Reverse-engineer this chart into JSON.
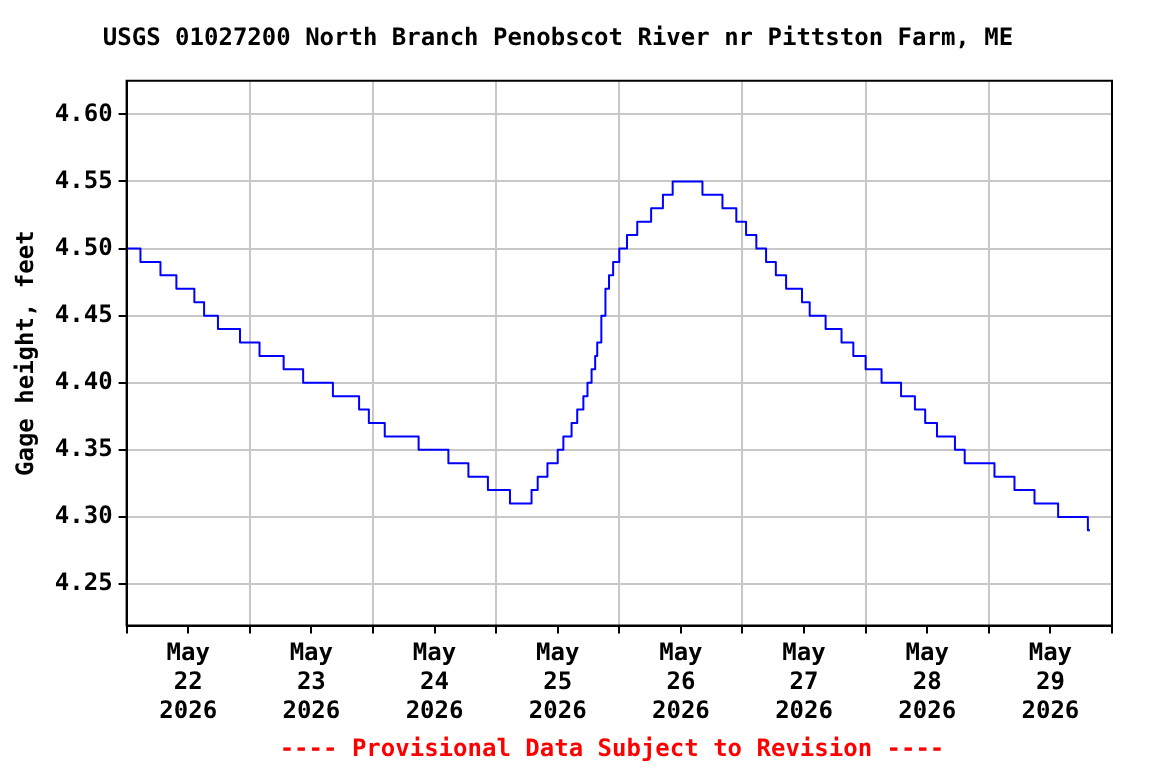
{
  "chart_data": {
    "type": "step",
    "title": "USGS 01027200 North Branch Penobscot River nr Pittston Farm, ME",
    "ylabel": "Gage height, feet",
    "annotations": [
      "---- Provisional Data Subject to Revision ----"
    ],
    "x": [
      "2026-05-22T00:00",
      "2026-05-22T02:42",
      "2026-05-22T06:36",
      "2026-05-22T09:42",
      "2026-05-22T13:12",
      "2026-05-22T15:06",
      "2026-05-22T17:48",
      "2026-05-22T22:06",
      "2026-05-23T01:54",
      "2026-05-23T06:36",
      "2026-05-23T10:24",
      "2026-05-23T16:12",
      "2026-05-23T21:18",
      "2026-05-23T23:12",
      "2026-05-24T02:18",
      "2026-05-24T08:54",
      "2026-05-24T14:42",
      "2026-05-24T18:36",
      "2026-05-24T22:24",
      "2026-05-25T02:42",
      "2026-05-25T06:54",
      "2026-05-25T08:06",
      "2026-05-25T10:00",
      "2026-05-25T12:00",
      "2026-05-25T13:06",
      "2026-05-25T14:42",
      "2026-05-25T15:48",
      "2026-05-25T17:00",
      "2026-05-25T17:48",
      "2026-05-25T18:36",
      "2026-05-25T19:18",
      "2026-05-25T19:42",
      "2026-05-25T20:30",
      "2026-05-25T21:18",
      "2026-05-25T22:00",
      "2026-05-25T22:48",
      "2026-05-26T00:00",
      "2026-05-26T01:30",
      "2026-05-26T03:30",
      "2026-05-26T06:12",
      "2026-05-26T08:30",
      "2026-05-26T10:24",
      "2026-05-26T16:12",
      "2026-05-26T20:06",
      "2026-05-26T22:48",
      "2026-05-27T00:42",
      "2026-05-27T02:42",
      "2026-05-27T04:36",
      "2026-05-27T06:30",
      "2026-05-27T08:30",
      "2026-05-27T11:36",
      "2026-05-27T13:06",
      "2026-05-27T16:12",
      "2026-05-27T19:18",
      "2026-05-27T21:36",
      "2026-05-28T00:00",
      "2026-05-28T03:06",
      "2026-05-28T06:54",
      "2026-05-28T09:36",
      "2026-05-28T11:36",
      "2026-05-28T13:54",
      "2026-05-28T17:24",
      "2026-05-28T19:18",
      "2026-05-29T01:06",
      "2026-05-29T05:00",
      "2026-05-29T08:54",
      "2026-05-29T13:30",
      "2026-05-29T19:18",
      "2026-05-29T19:42"
    ],
    "series": [
      {
        "color": "#0000ff",
        "values": [
          4.5,
          4.49,
          4.48,
          4.47,
          4.46,
          4.45,
          4.44,
          4.43,
          4.42,
          4.41,
          4.4,
          4.39,
          4.38,
          4.37,
          4.36,
          4.35,
          4.34,
          4.33,
          4.32,
          4.31,
          4.32,
          4.33,
          4.34,
          4.35,
          4.36,
          4.37,
          4.38,
          4.39,
          4.4,
          4.41,
          4.42,
          4.43,
          4.45,
          4.47,
          4.48,
          4.49,
          4.5,
          4.51,
          4.52,
          4.53,
          4.54,
          4.55,
          4.54,
          4.53,
          4.52,
          4.51,
          4.5,
          4.49,
          4.48,
          4.47,
          4.46,
          4.45,
          4.44,
          4.43,
          4.42,
          4.41,
          4.4,
          4.39,
          4.38,
          4.37,
          4.36,
          4.35,
          4.34,
          4.33,
          4.32,
          4.31,
          4.3,
          4.29,
          4.29
        ]
      }
    ],
    "xlim": [
      "2026-05-22T00:00",
      "2026-05-30T00:00"
    ],
    "xticks": [
      {
        "value": "2026-05-22T00:00",
        "label": null
      },
      {
        "value": "2026-05-22T12:00",
        "label": "May\n22\n2026"
      },
      {
        "value": "2026-05-23T00:00",
        "label": null
      },
      {
        "value": "2026-05-23T12:00",
        "label": "May\n23\n2026"
      },
      {
        "value": "2026-05-24T00:00",
        "label": null
      },
      {
        "value": "2026-05-24T12:00",
        "label": "May\n24\n2026"
      },
      {
        "value": "2026-05-25T00:00",
        "label": null
      },
      {
        "value": "2026-05-25T12:00",
        "label": "May\n25\n2026"
      },
      {
        "value": "2026-05-26T00:00",
        "label": null
      },
      {
        "value": "2026-05-26T12:00",
        "label": "May\n26\n2026"
      },
      {
        "value": "2026-05-27T00:00",
        "label": null
      },
      {
        "value": "2026-05-27T12:00",
        "label": "May\n27\n2026"
      },
      {
        "value": "2026-05-28T00:00",
        "label": null
      },
      {
        "value": "2026-05-28T12:00",
        "label": "May\n28\n2026"
      },
      {
        "value": "2026-05-29T00:00",
        "label": null
      },
      {
        "value": "2026-05-29T12:00",
        "label": "May\n29\n2026"
      },
      {
        "value": "2026-05-30T00:00",
        "label": null
      }
    ],
    "ylim": [
      4.219,
      4.625
    ],
    "yticks": [
      {
        "value": 4.25,
        "label": "4.25"
      },
      {
        "value": 4.3,
        "label": "4.30"
      },
      {
        "value": 4.35,
        "label": "4.35"
      },
      {
        "value": 4.4,
        "label": "4.40"
      },
      {
        "value": 4.45,
        "label": "4.45"
      },
      {
        "value": 4.5,
        "label": "4.50"
      },
      {
        "value": 4.55,
        "label": "4.55"
      },
      {
        "value": 4.6,
        "label": "4.60"
      }
    ],
    "grid": true,
    "legend": false
  }
}
